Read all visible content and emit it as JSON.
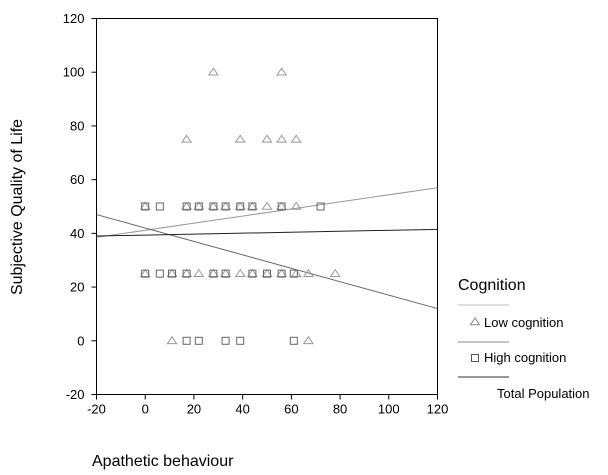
{
  "chart_data": {
    "type": "scatter",
    "xlabel": "Apathetic behaviour",
    "ylabel": "Subjective Quality of Life",
    "xlim": [
      -20,
      120
    ],
    "ylim": [
      -20,
      120
    ],
    "xticks": [
      -20,
      0,
      20,
      40,
      60,
      80,
      100,
      120
    ],
    "yticks": [
      -20,
      0,
      20,
      40,
      60,
      80,
      100,
      120
    ],
    "grid": false,
    "legend": {
      "title": "Cognition",
      "placement": "right",
      "entries": [
        {
          "label": "Low cognition",
          "marker": "triangle",
          "line": true
        },
        {
          "label": "High cognition",
          "marker": "square",
          "line": true
        },
        {
          "label": "Total Population",
          "marker": "none",
          "line": true
        }
      ]
    },
    "series": [
      {
        "name": "Low cognition",
        "marker": "triangle",
        "color": "#999999",
        "points": [
          [
            28,
            100
          ],
          [
            56,
            100
          ],
          [
            17,
            75
          ],
          [
            39,
            75
          ],
          [
            50,
            75
          ],
          [
            56,
            75
          ],
          [
            62,
            75
          ],
          [
            0,
            50
          ],
          [
            17,
            50
          ],
          [
            22,
            50
          ],
          [
            28,
            50
          ],
          [
            33,
            50
          ],
          [
            39,
            50
          ],
          [
            44,
            50
          ],
          [
            50,
            50
          ],
          [
            56,
            50
          ],
          [
            62,
            50
          ],
          [
            0,
            25
          ],
          [
            11,
            25
          ],
          [
            17,
            25
          ],
          [
            22,
            25
          ],
          [
            28,
            25
          ],
          [
            33,
            25
          ],
          [
            39,
            25
          ],
          [
            44,
            25
          ],
          [
            50,
            25
          ],
          [
            56,
            25
          ],
          [
            62,
            25
          ],
          [
            67,
            25
          ],
          [
            78,
            25
          ],
          [
            11,
            0
          ],
          [
            67,
            0
          ]
        ],
        "fit": {
          "x": [
            -20,
            120
          ],
          "y": [
            38.5,
            57
          ]
        }
      },
      {
        "name": "High cognition",
        "marker": "square",
        "color": "#666666",
        "points": [
          [
            0,
            50
          ],
          [
            6,
            50
          ],
          [
            17,
            50
          ],
          [
            22,
            50
          ],
          [
            28,
            50
          ],
          [
            33,
            50
          ],
          [
            39,
            50
          ],
          [
            44,
            50
          ],
          [
            56,
            50
          ],
          [
            72,
            50
          ],
          [
            0,
            25
          ],
          [
            6,
            25
          ],
          [
            11,
            25
          ],
          [
            17,
            25
          ],
          [
            28,
            25
          ],
          [
            33,
            25
          ],
          [
            44,
            25
          ],
          [
            50,
            25
          ],
          [
            56,
            25
          ],
          [
            61,
            25
          ],
          [
            17,
            0
          ],
          [
            22,
            0
          ],
          [
            33,
            0
          ],
          [
            39,
            0
          ],
          [
            61,
            0
          ]
        ],
        "fit": {
          "x": [
            -20,
            120
          ],
          "y": [
            47,
            12
          ]
        }
      },
      {
        "name": "Total Population",
        "marker": "none",
        "color": "#222222",
        "points": [],
        "fit": {
          "x": [
            -20,
            120
          ],
          "y": [
            39,
            41.5
          ]
        }
      }
    ],
    "legend_line_colors": [
      "#bbbbbb",
      "#888888",
      "#333333"
    ]
  }
}
